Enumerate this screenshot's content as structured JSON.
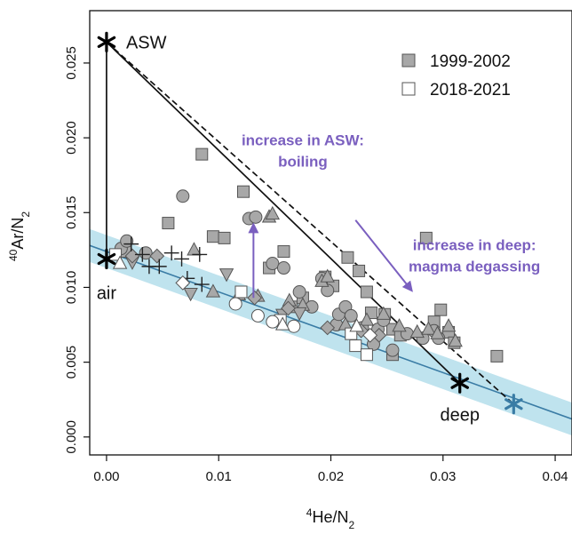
{
  "chart_data": {
    "type": "scatter",
    "xlabel": {
      "sup": "4",
      "main": "He/N",
      "sub": "2"
    },
    "ylabel": {
      "sup": "40",
      "main": "Ar/N",
      "sub": "2"
    },
    "xlim": [
      -0.0015,
      0.0415
    ],
    "ylim": [
      -0.0012,
      0.0285
    ],
    "x_ticks": [
      {
        "value": 0.0,
        "label": "0.00"
      },
      {
        "value": 0.01,
        "label": "0.01"
      },
      {
        "value": 0.02,
        "label": "0.02"
      },
      {
        "value": 0.03,
        "label": "0.03"
      },
      {
        "value": 0.04,
        "label": "0.04"
      }
    ],
    "y_ticks": [
      {
        "value": 0.0,
        "label": "0.000"
      },
      {
        "value": 0.005,
        "label": "0.005"
      },
      {
        "value": 0.01,
        "label": "0.010"
      },
      {
        "value": 0.015,
        "label": "0.015"
      },
      {
        "value": 0.02,
        "label": "0.020"
      },
      {
        "value": 0.025,
        "label": "0.025"
      }
    ],
    "grid": false,
    "legend": {
      "position": "top-right",
      "entries": [
        {
          "label": "1999-2002",
          "marker": "square",
          "fill": "#a8a8a8"
        },
        {
          "label": "2018-2021",
          "marker": "square",
          "fill": "#ffffff"
        }
      ]
    },
    "endmembers": [
      {
        "name": "ASW",
        "x": 0.0,
        "y": 0.0264,
        "color": "#000000"
      },
      {
        "name": "air",
        "x": 0.0,
        "y": 0.0119,
        "color": "#000000"
      },
      {
        "name": "deep",
        "x": 0.0315,
        "y": 0.0036,
        "color": "#000000"
      },
      {
        "name": "",
        "x": 0.0363,
        "y": 0.0022,
        "color": "#3a7ca5"
      }
    ],
    "mixing_lines": [
      {
        "style": "solid",
        "points": [
          [
            0.0,
            0.0264
          ],
          [
            0.0,
            0.0119
          ]
        ]
      },
      {
        "style": "solid",
        "points": [
          [
            0.0,
            0.0264
          ],
          [
            0.0315,
            0.0036
          ]
        ]
      },
      {
        "style": "dashed",
        "points": [
          [
            0.0,
            0.0264
          ],
          [
            0.0363,
            0.0022
          ]
        ]
      }
    ],
    "trend": {
      "x0": -0.0015,
      "y0": 0.0128,
      "x1": 0.0415,
      "y1": 0.0012,
      "band_halfwidth": 0.0011,
      "line_color": "#3a7ca5",
      "band_color": "#bfe3ee"
    },
    "annotations": [
      {
        "name": "boiling",
        "lines": [
          "increase in ASW:",
          "boiling"
        ],
        "x": 0.0175,
        "y": 0.0195,
        "color": "#7a5fbf",
        "arrow": {
          "x1": 0.0131,
          "y1": 0.0093,
          "x2": 0.0131,
          "y2": 0.0142
        }
      },
      {
        "name": "degassing",
        "lines": [
          "increase in deep:",
          "magma degassing"
        ],
        "x": 0.0328,
        "y": 0.0125,
        "color": "#7a5fbf",
        "arrow": {
          "x1": 0.0222,
          "y1": 0.0145,
          "x2": 0.0272,
          "y2": 0.0098
        }
      }
    ],
    "series": [
      {
        "name": "1999-2002",
        "marker": "square",
        "fill": "#a8a8a8",
        "points": [
          [
            0.0017,
            0.0124
          ],
          [
            0.0055,
            0.0143
          ],
          [
            0.0085,
            0.0189
          ],
          [
            0.0095,
            0.0134
          ],
          [
            0.0105,
            0.0133
          ],
          [
            0.0122,
            0.0164
          ],
          [
            0.0145,
            0.0113
          ],
          [
            0.0158,
            0.0124
          ],
          [
            0.0165,
            0.0087
          ],
          [
            0.0175,
            0.0093
          ],
          [
            0.0195,
            0.0107
          ],
          [
            0.0202,
            0.0101
          ],
          [
            0.0215,
            0.012
          ],
          [
            0.0225,
            0.0111
          ],
          [
            0.0232,
            0.0097
          ],
          [
            0.0236,
            0.0083
          ],
          [
            0.0248,
            0.0082
          ],
          [
            0.0255,
            0.0072
          ],
          [
            0.0255,
            0.0055
          ],
          [
            0.0262,
            0.0068
          ],
          [
            0.0285,
            0.0133
          ],
          [
            0.0292,
            0.0077
          ],
          [
            0.0298,
            0.0085
          ],
          [
            0.0305,
            0.007
          ],
          [
            0.031,
            0.0063
          ],
          [
            0.0348,
            0.0054
          ]
        ]
      },
      {
        "name": "",
        "marker": "circle",
        "fill": "#a8a8a8",
        "points": [
          [
            0.0013,
            0.0126
          ],
          [
            0.0018,
            0.0131
          ],
          [
            0.0035,
            0.0123
          ],
          [
            0.0068,
            0.0161
          ],
          [
            0.0127,
            0.0146
          ],
          [
            0.0133,
            0.0147
          ],
          [
            0.0148,
            0.0116
          ],
          [
            0.0158,
            0.0113
          ],
          [
            0.0172,
            0.0097
          ],
          [
            0.0183,
            0.0087
          ],
          [
            0.0192,
            0.0106
          ],
          [
            0.0197,
            0.0098
          ],
          [
            0.0205,
            0.0075
          ],
          [
            0.0207,
            0.0082
          ],
          [
            0.0213,
            0.0087
          ],
          [
            0.0218,
            0.0081
          ],
          [
            0.0228,
            0.0073
          ],
          [
            0.0238,
            0.0062
          ],
          [
            0.0242,
            0.0072
          ],
          [
            0.0247,
            0.0078
          ],
          [
            0.0255,
            0.0058
          ],
          [
            0.0268,
            0.0069
          ],
          [
            0.0282,
            0.0066
          ],
          [
            0.0292,
            0.0071
          ],
          [
            0.0296,
            0.0066
          ]
        ]
      },
      {
        "name": "",
        "marker": "triangle-up",
        "fill": "#a8a8a8",
        "points": [
          [
            0.0078,
            0.0125
          ],
          [
            0.0095,
            0.0097
          ],
          [
            0.0118,
            0.0095
          ],
          [
            0.0135,
            0.0094
          ],
          [
            0.0145,
            0.0147
          ],
          [
            0.0148,
            0.0149
          ],
          [
            0.0163,
            0.0091
          ],
          [
            0.0175,
            0.0088
          ],
          [
            0.0192,
            0.0104
          ],
          [
            0.0197,
            0.0107
          ],
          [
            0.0213,
            0.0075
          ],
          [
            0.0222,
            0.0073
          ],
          [
            0.0232,
            0.0078
          ],
          [
            0.0247,
            0.0082
          ],
          [
            0.0261,
            0.0074
          ],
          [
            0.0277,
            0.007
          ],
          [
            0.0287,
            0.0072
          ],
          [
            0.0295,
            0.0069
          ],
          [
            0.0305,
            0.0074
          ],
          [
            0.0311,
            0.0064
          ]
        ]
      },
      {
        "name": "",
        "marker": "triangle-down",
        "fill": "#a8a8a8",
        "points": [
          [
            0.0023,
            0.0117
          ],
          [
            0.0075,
            0.0096
          ],
          [
            0.0107,
            0.0109
          ],
          [
            0.0157,
            0.0082
          ],
          [
            0.0172,
            0.0083
          ]
        ]
      },
      {
        "name": "",
        "marker": "diamond",
        "fill": "#a8a8a8",
        "points": [
          [
            0.0023,
            0.0121
          ],
          [
            0.0045,
            0.0121
          ],
          [
            0.0132,
            0.0093
          ],
          [
            0.0162,
            0.0086
          ],
          [
            0.0197,
            0.0073
          ],
          [
            0.0227,
            0.0071
          ],
          [
            0.0243,
            0.0068
          ]
        ]
      },
      {
        "name": "",
        "marker": "plus",
        "fill": "#000000",
        "points": [
          [
            0.0022,
            0.0129
          ],
          [
            0.0032,
            0.0122
          ],
          [
            0.0038,
            0.0114
          ],
          [
            0.0047,
            0.0114
          ],
          [
            0.0058,
            0.0123
          ],
          [
            0.0067,
            0.0119
          ],
          [
            0.0072,
            0.0106
          ],
          [
            0.0083,
            0.0122
          ],
          [
            0.0085,
            0.0102
          ]
        ]
      },
      {
        "name": "2018-2021",
        "marker": "square",
        "fill": "#ffffff",
        "points": [
          [
            0.0008,
            0.0122
          ],
          [
            0.012,
            0.0097
          ],
          [
            0.0155,
            0.0078
          ],
          [
            0.0218,
            0.0069
          ],
          [
            0.0222,
            0.0061
          ],
          [
            0.0232,
            0.0055
          ]
        ]
      },
      {
        "name": "",
        "marker": "circle",
        "fill": "#ffffff",
        "points": [
          [
            0.0115,
            0.0089
          ],
          [
            0.0135,
            0.0081
          ],
          [
            0.0148,
            0.0077
          ],
          [
            0.0167,
            0.0074
          ]
        ]
      },
      {
        "name": "",
        "marker": "triangle-up",
        "fill": "#ffffff",
        "points": [
          [
            0.0012,
            0.0116
          ],
          [
            0.0157,
            0.0075
          ],
          [
            0.0223,
            0.0074
          ]
        ]
      },
      {
        "name": "",
        "marker": "diamond",
        "fill": "#ffffff",
        "points": [
          [
            0.0068,
            0.0103
          ],
          [
            0.0235,
            0.0068
          ]
        ]
      }
    ]
  }
}
